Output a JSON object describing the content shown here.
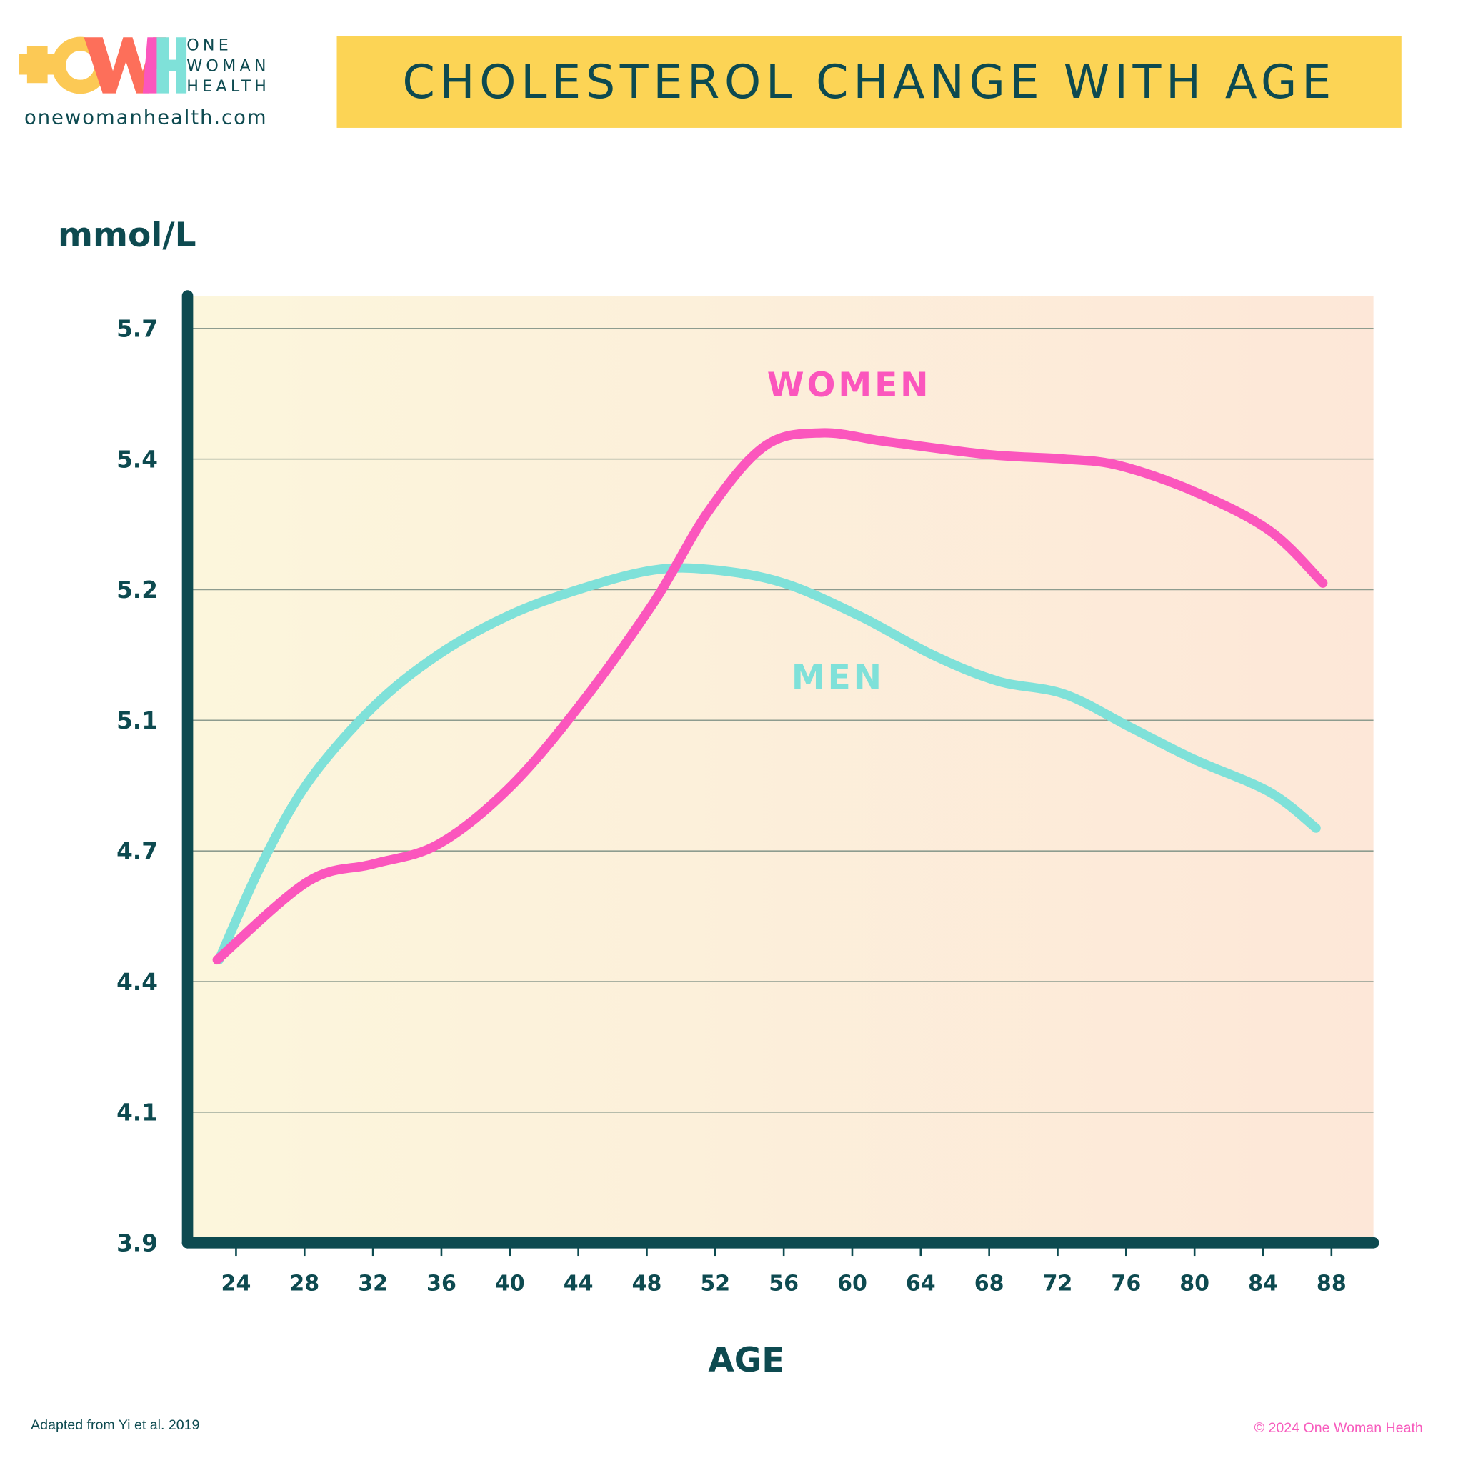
{
  "header": {
    "title": "CHOLESTEROL CHANGE WITH AGE",
    "brand_lines": [
      "ONE",
      "WOMAN",
      "HEALTH"
    ],
    "logo_text": "OWH",
    "website": "onewomanhealth.com"
  },
  "footer": {
    "source": "Adapted from Yi et al. 2019",
    "copyright": "© 2024 One Woman Heath"
  },
  "colors": {
    "women": "#fb56bd",
    "men": "#7fe1d9",
    "axis": "#0d4a50",
    "title_bg": "#fcd455"
  },
  "chart_data": {
    "type": "line",
    "title": "CHOLESTEROL CHANGE WITH AGE",
    "xlabel": "AGE",
    "ylabel": "mmol/L",
    "x_ticks": [
      24,
      28,
      32,
      36,
      40,
      44,
      48,
      52,
      56,
      60,
      64,
      68,
      72,
      76,
      80,
      84,
      88
    ],
    "y_ticks": [
      "3.9",
      "4.1",
      "4.4",
      "4.7",
      "5.1",
      "5.2",
      "5.4",
      "5.7"
    ],
    "y_scale": "non-uniform (tick labels evenly spaced)",
    "grid": "horizontal",
    "series": [
      {
        "name": "WOMEN",
        "color": "#fb56bd",
        "points": [
          [
            22.9,
            4.45
          ],
          [
            28.2,
            4.63
          ],
          [
            32,
            4.67
          ],
          [
            35.8,
            4.72
          ],
          [
            39.9,
            4.89
          ],
          [
            44,
            5.11
          ],
          [
            48.4,
            5.19
          ],
          [
            51.6,
            5.32
          ],
          [
            54.9,
            5.43
          ],
          [
            58.2,
            5.46
          ],
          [
            62,
            5.44
          ],
          [
            68,
            5.41
          ],
          [
            72.4,
            5.4
          ],
          [
            75.6,
            5.39
          ],
          [
            80,
            5.35
          ],
          [
            84.4,
            5.29
          ],
          [
            87.5,
            5.21
          ]
        ]
      },
      {
        "name": "MEN",
        "color": "#7fe1d9",
        "points": [
          [
            23,
            4.45
          ],
          [
            25.5,
            4.67
          ],
          [
            28.2,
            4.91
          ],
          [
            32,
            5.11
          ],
          [
            35.8,
            5.15
          ],
          [
            39.9,
            5.18
          ],
          [
            44,
            5.2
          ],
          [
            48.4,
            5.23
          ],
          [
            52,
            5.23
          ],
          [
            56,
            5.21
          ],
          [
            60.4,
            5.18
          ],
          [
            64.7,
            5.15
          ],
          [
            68.5,
            5.13
          ],
          [
            72.4,
            5.12
          ],
          [
            76.2,
            5.08
          ],
          [
            80,
            4.98
          ],
          [
            84.4,
            4.88
          ],
          [
            87.1,
            4.77
          ]
        ]
      }
    ]
  }
}
